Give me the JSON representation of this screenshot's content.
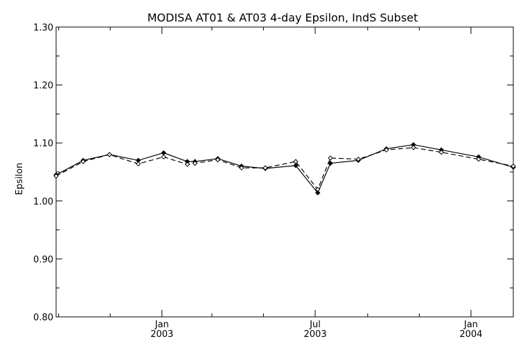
{
  "chart_data": {
    "type": "line",
    "title": "MODISA AT01 & AT03 4-day Epsilon, IndS Subset",
    "xlabel": "",
    "ylabel": "Epsilon",
    "ylim": [
      0.8,
      1.3
    ],
    "yticks": [
      "0.80",
      "0.90",
      "1.00",
      "1.10",
      "1.20",
      "1.30"
    ],
    "xlim": [
      "2002-08-29",
      "2004-02-20"
    ],
    "xtick_labels": [
      {
        "date": "2003-01-01",
        "month": "Jan",
        "year": "2003"
      },
      {
        "date": "2003-07-01",
        "month": "Jul",
        "year": "2003"
      },
      {
        "date": "2004-01-01",
        "month": "Jan",
        "year": "2004"
      }
    ],
    "minor_tick_dates": [
      "2002-09-01",
      "2002-11-01",
      "2003-03-01",
      "2003-05-01",
      "2003-09-01",
      "2003-11-01"
    ],
    "grid": false,
    "series": [
      {
        "line_style": "solid",
        "marker": "filled-diamond",
        "x": [
          "2002-08-29",
          "2002-09-30",
          "2002-10-31",
          "2002-12-04",
          "2003-01-03",
          "2003-01-31",
          "2003-02-09",
          "2003-03-08",
          "2003-04-05",
          "2003-05-03",
          "2003-06-08",
          "2003-07-04",
          "2003-07-19",
          "2003-08-21",
          "2003-09-23",
          "2003-10-25",
          "2003-11-27",
          "2004-01-10",
          "2004-02-20"
        ],
        "y": [
          1.045,
          1.07,
          1.08,
          1.07,
          1.083,
          1.068,
          1.068,
          1.073,
          1.06,
          1.056,
          1.061,
          1.014,
          1.065,
          1.07,
          1.09,
          1.097,
          1.088,
          1.076,
          1.058
        ]
      },
      {
        "line_style": "dashed",
        "marker": "open-diamond",
        "x": [
          "2002-08-29",
          "2002-09-30",
          "2002-10-31",
          "2002-12-04",
          "2003-01-03",
          "2003-01-31",
          "2003-02-09",
          "2003-03-08",
          "2003-04-05",
          "2003-05-03",
          "2003-06-08",
          "2003-07-04",
          "2003-07-19",
          "2003-08-21",
          "2003-09-23",
          "2003-10-25",
          "2003-11-27",
          "2004-01-10",
          "2004-02-20"
        ],
        "y": [
          1.043,
          1.068,
          1.08,
          1.064,
          1.076,
          1.063,
          1.065,
          1.071,
          1.057,
          1.057,
          1.068,
          1.02,
          1.074,
          1.072,
          1.088,
          1.092,
          1.084,
          1.072,
          1.06
        ]
      }
    ]
  }
}
